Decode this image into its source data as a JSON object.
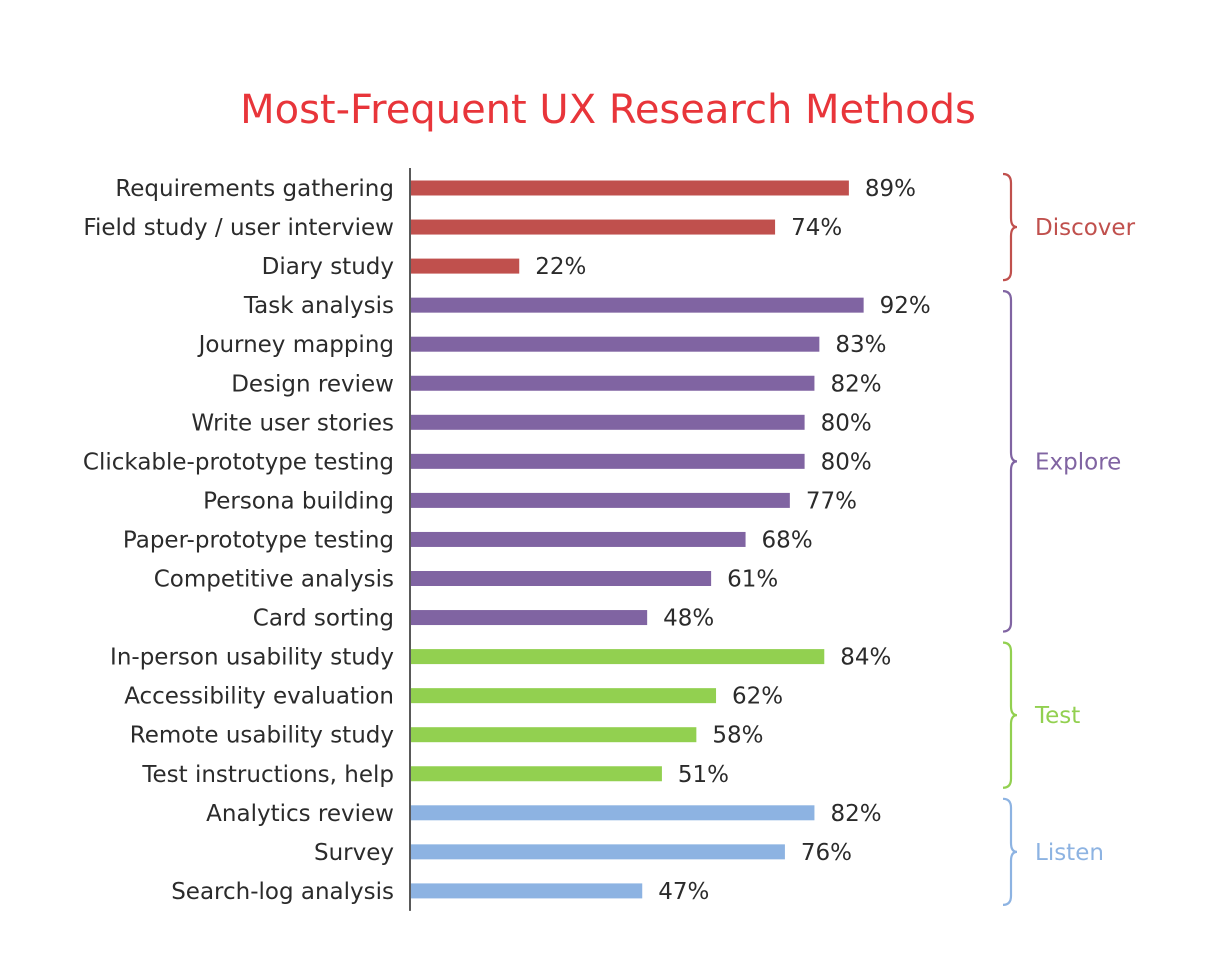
{
  "chart_data": {
    "type": "bar",
    "orientation": "horizontal",
    "title": "Most-Frequent UX Research Methods",
    "title_color": "#e8353a",
    "value_suffix": "%",
    "xlim": [
      0,
      100
    ],
    "grid": false,
    "legend": "none",
    "groups": [
      {
        "name": "Discover",
        "color": "#c0504d",
        "items": [
          {
            "label": "Requirements gathering",
            "value": 89
          },
          {
            "label": "Field study / user interview",
            "value": 74
          },
          {
            "label": "Diary study",
            "value": 22
          }
        ]
      },
      {
        "name": "Explore",
        "color": "#8064a2",
        "items": [
          {
            "label": "Task analysis",
            "value": 92
          },
          {
            "label": "Journey mapping",
            "value": 83
          },
          {
            "label": "Design review",
            "value": 82
          },
          {
            "label": "Write user stories",
            "value": 80
          },
          {
            "label": "Clickable-prototype testing",
            "value": 80
          },
          {
            "label": "Persona building",
            "value": 77
          },
          {
            "label": "Paper-prototype testing",
            "value": 68
          },
          {
            "label": "Competitive analysis",
            "value": 61
          },
          {
            "label": "Card sorting",
            "value": 48
          }
        ]
      },
      {
        "name": "Test",
        "color": "#92d050",
        "items": [
          {
            "label": "In-person usability study",
            "value": 84
          },
          {
            "label": "Accessibility evaluation",
            "value": 62
          },
          {
            "label": "Remote usability study",
            "value": 58
          },
          {
            "label": "Test instructions, help",
            "value": 51
          }
        ]
      },
      {
        "name": "Listen",
        "color": "#8db3e2",
        "items": [
          {
            "label": "Analytics review",
            "value": 82
          },
          {
            "label": "Survey",
            "value": 76
          },
          {
            "label": "Search-log analysis",
            "value": 47
          }
        ]
      }
    ]
  }
}
